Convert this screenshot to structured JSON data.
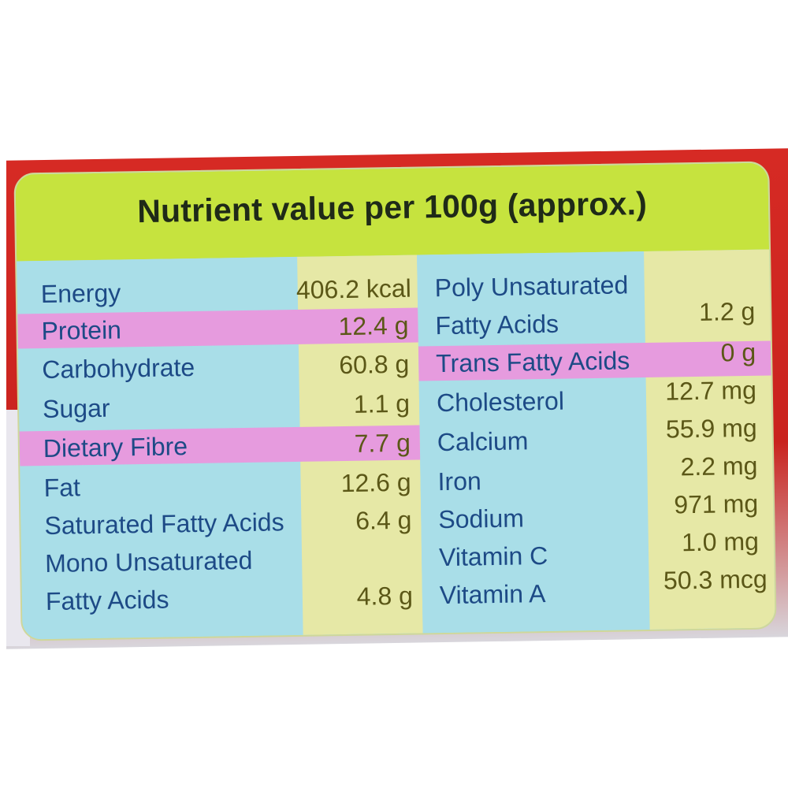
{
  "title": "Nutrient value per 100g (approx.)",
  "colors": {
    "header": "#c6e33e",
    "name_column": "#a9dee8",
    "value_column": "#e6e8a6",
    "highlight": "#e69bde",
    "name_text": "#1d4a86",
    "value_text": "#5b5717",
    "backing": "#d62a24"
  },
  "left_rows": [
    {
      "name": "Energy",
      "value": "406.2 kcal"
    },
    {
      "name": "Protein",
      "value": "12.4 g"
    },
    {
      "name": "Carbohydrate",
      "value": "60.8 g"
    },
    {
      "name": "Sugar",
      "value": "1.1 g"
    },
    {
      "name": "Dietary Fibre",
      "value": "7.7 g"
    },
    {
      "name": "Fat",
      "value": "12.6 g"
    },
    {
      "name": "Saturated Fatty Acids",
      "value": "6.4 g"
    },
    {
      "name_line1": "Mono Unsaturated",
      "name_line2": "Fatty Acids",
      "value": "4.8 g"
    }
  ],
  "right_rows": [
    {
      "name_line1": "Poly Unsaturated",
      "name_line2": "Fatty Acids",
      "value": "1.2 g"
    },
    {
      "name": "Trans Fatty Acids",
      "value": "0 g"
    },
    {
      "name": "Cholesterol",
      "value": "12.7 mg"
    },
    {
      "name": "Calcium",
      "value": "55.9 mg"
    },
    {
      "name": "Iron",
      "value": "2.2 mg"
    },
    {
      "name": "Sodium",
      "value": "971 mg"
    },
    {
      "name": "Vitamin C",
      "value": "1.0 mg"
    },
    {
      "name": "Vitamin A",
      "value": "50.3 mcg"
    }
  ]
}
